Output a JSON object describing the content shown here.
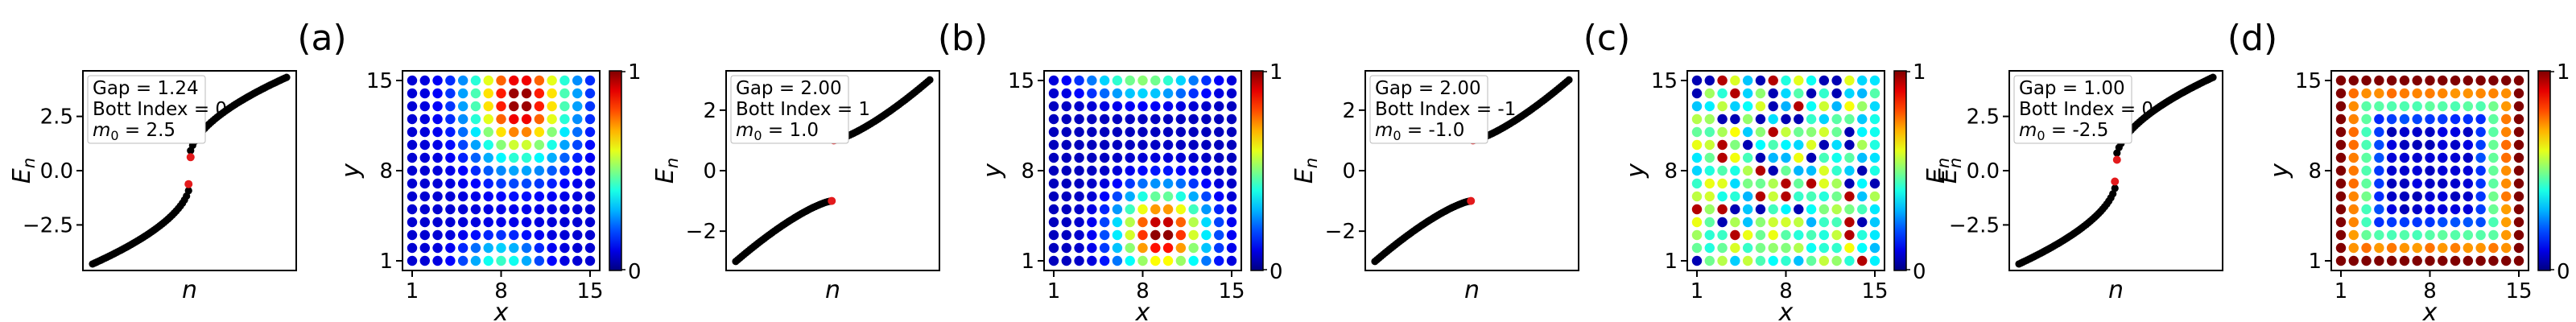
{
  "chart_data": [
    {
      "type": "scatter",
      "panel_label": "(a)",
      "info": {
        "gap_line": "Gap = 1.24",
        "bott_line": "Bott Index = 0",
        "m0_prefix": "m",
        "m0_sub": "0",
        "m0_value": " = 2.5"
      },
      "xlabel": "n",
      "ylabel": "E_n",
      "ylim": [
        -4.6,
        4.6
      ],
      "yticks": [
        -2.5,
        0.0,
        2.5
      ],
      "yticklabels": [
        "−2.5",
        "0.0",
        "2.5"
      ],
      "spectrum": {
        "n_states": 96,
        "bulk_min": 0.62,
        "bulk_max": 4.3,
        "edge_states": [
          0.62,
          -0.62
        ],
        "shape": "smooth"
      },
      "colors": {
        "bulk": "#000000",
        "edge": "#e31a1c"
      }
    },
    {
      "type": "heatmap",
      "xlabel": "x",
      "ylabel": "y",
      "xticks": [
        1,
        8,
        15
      ],
      "yticks": [
        1,
        8,
        15
      ],
      "colorbar": {
        "range": [
          0,
          1
        ],
        "ticks": [
          "0",
          "1"
        ],
        "colormap": "jet"
      },
      "grid": {
        "nx": 15,
        "ny": 15,
        "pattern": "upper-right-blob"
      }
    },
    {
      "type": "scatter",
      "panel_label": "(b)",
      "info": {
        "gap_line": "Gap = 2.00",
        "bott_line": "Bott Index = 1",
        "m0_prefix": "m",
        "m0_sub": "0",
        "m0_value": " = 1.0"
      },
      "xlabel": "n",
      "ylabel": "E_n",
      "ylim": [
        -3.3,
        3.3
      ],
      "yticks": [
        -2,
        0,
        2
      ],
      "yticklabels": [
        "−2",
        "0",
        "2"
      ],
      "spectrum": {
        "n_states": 96,
        "bulk_min": 1.0,
        "bulk_max": 3.0,
        "edge_states": [
          1.0,
          -1.0
        ],
        "shape": "gapped"
      },
      "colors": {
        "bulk": "#000000",
        "edge": "#e31a1c"
      }
    },
    {
      "type": "heatmap",
      "xlabel": "x",
      "ylabel": "y",
      "xticks": [
        1,
        8,
        15
      ],
      "yticks": [
        1,
        8,
        15
      ],
      "colorbar": {
        "range": [
          0,
          1
        ],
        "ticks": [
          "0",
          "1"
        ],
        "colormap": "jet"
      },
      "grid": {
        "nx": 15,
        "ny": 15,
        "pattern": "lower-middle-blob"
      }
    },
    {
      "type": "scatter",
      "panel_label": "(c)",
      "info": {
        "gap_line": "Gap = 2.00",
        "bott_line": "Bott Index = -1",
        "m0_prefix": "m",
        "m0_sub": "0",
        "m0_value": " = -1.0"
      },
      "xlabel": "n",
      "ylabel": "E_n",
      "ylim": [
        -3.3,
        3.3
      ],
      "yticks": [
        -2,
        0,
        2
      ],
      "yticklabels": [
        "−2",
        "0",
        "2"
      ],
      "spectrum": {
        "n_states": 96,
        "bulk_min": 1.0,
        "bulk_max": 3.0,
        "edge_states": [
          1.0,
          -1.0
        ],
        "shape": "gapped"
      },
      "colors": {
        "bulk": "#000000",
        "edge": "#e31a1c"
      }
    },
    {
      "type": "heatmap",
      "xlabel": "x",
      "ylabel": "y",
      "xticks": [
        1,
        8,
        15
      ],
      "yticks": [
        1,
        8,
        15
      ],
      "colorbar": {
        "range": [
          0,
          1
        ],
        "ticks": [
          "0",
          "1"
        ],
        "colormap": "jet",
        "label": "E_n"
      },
      "grid": {
        "nx": 15,
        "ny": 15,
        "pattern": "random-speckle"
      }
    },
    {
      "type": "scatter",
      "panel_label": "(d)",
      "info": {
        "gap_line": "Gap = 1.00",
        "bott_line": "Bott Index = 0",
        "m0_prefix": "m",
        "m0_sub": "0",
        "m0_value": " = -2.5"
      },
      "xlabel": "n",
      "ylabel": "E_n",
      "ylim": [
        -4.6,
        4.6
      ],
      "yticks": [
        -2.5,
        0.0,
        2.5
      ],
      "yticklabels": [
        "−2.5",
        "0.0",
        "2.5"
      ],
      "spectrum": {
        "n_states": 96,
        "bulk_min": 0.5,
        "bulk_max": 4.3,
        "edge_states": [
          0.5,
          -0.5
        ],
        "shape": "smooth"
      },
      "colors": {
        "bulk": "#000000",
        "edge": "#e31a1c"
      }
    },
    {
      "type": "heatmap",
      "xlabel": "x",
      "ylabel": "y",
      "xticks": [
        1,
        8,
        15
      ],
      "yticks": [
        1,
        8,
        15
      ],
      "colorbar": {
        "range": [
          0,
          1
        ],
        "ticks": [
          "0",
          "1"
        ],
        "colormap": "jet"
      },
      "grid": {
        "nx": 15,
        "ny": 15,
        "pattern": "edge-ring"
      }
    }
  ]
}
